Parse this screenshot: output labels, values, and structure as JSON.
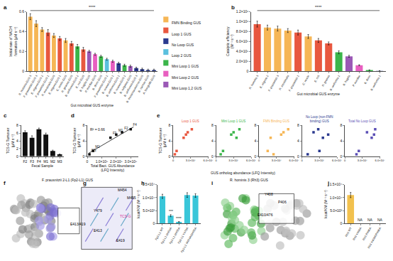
{
  "chart_data": [
    {
      "panel": "a",
      "type": "bar",
      "y_label": [
        "Initial rate of NADH",
        "formation (μM s⁻¹)"
      ],
      "x_label": "Gut microbial GUS enzyme",
      "categories": [
        "R. hominis GUS 3",
        "F. prausnitzii GUS 3",
        "E. eligens GUS 2",
        "F. prausnitzii GUS 1",
        "R. intestinalis GUS",
        "E. eligens GUS 1",
        "C. nexile GUS",
        "R. gnavus GUS",
        "B. uniformis GUS 2",
        "E. coli GUS",
        "B. fragilis GUS",
        "P. merdae GUS",
        "B. dorei GUS",
        "F. prausnitzii GUS 2",
        "B. ovatus GUS 1",
        "B. uniformis GUS 1",
        "B. ovatus GUS 2",
        "B. vulgatus GUS",
        "B. uniformis GUS 3",
        "B. thetaiotaomicron GUS",
        "B. caccae GUS",
        "A. finegoldii GUS"
      ],
      "values": [
        0.55,
        0.48,
        0.42,
        0.39,
        0.36,
        0.33,
        0.31,
        0.28,
        0.25,
        0.22,
        0.2,
        0.17,
        0.15,
        0.12,
        0.1,
        0.08,
        0.06,
        0.05,
        0.03,
        0.02,
        0.01,
        0.01
      ],
      "errors": [
        0.03,
        0.03,
        0.02,
        0.03,
        0.02,
        0.02,
        0.02,
        0.02,
        0.02,
        0.02,
        0.01,
        0.01,
        0.01,
        0.01,
        0.01,
        0.01,
        0.01,
        0.01,
        0.01,
        0.01,
        0.01,
        0.01
      ],
      "colors": [
        "#f6b655",
        "#f6b655",
        "#f6b655",
        "#e8573f",
        "#f6b655",
        "#e8573f",
        "#f6b655",
        "#e8573f",
        "#3bb54a",
        "#e8573f",
        "#9b59b6",
        "#e85fc0",
        "#3bb54a",
        "#5bc0de",
        "#e85fc0",
        "#2b3a8f",
        "#3bb54a",
        "#9b59b6",
        "#2b3a8f",
        "#2b3a8f",
        "#2b3a8f",
        "#2b3a8f"
      ],
      "ylim": [
        0,
        0.6
      ],
      "yticks": [
        0,
        0.2,
        0.4,
        0.6
      ],
      "significance": "****",
      "legend_items": [
        {
          "name": "FMN Binding GUS",
          "color": "#f6b655"
        },
        {
          "name": "Loop 1 GUS",
          "color": "#e8573f"
        },
        {
          "name": "No Loop GUS",
          "color": "#2b3a8f"
        },
        {
          "name": "Loop 2 GUS",
          "color": "#5bc0de"
        },
        {
          "name": "Mini Loop 1 GUS",
          "color": "#3bb54a"
        },
        {
          "name": "Mini Loop 2 GUS",
          "color": "#e85fc0"
        },
        {
          "name": "Mini Loop 1,2 GUS",
          "color": "#9b59b6"
        }
      ]
    },
    {
      "panel": "b",
      "type": "bar",
      "y_label": [
        "Catalytic efficiency",
        "(M⁻¹ s⁻¹)"
      ],
      "x_label": "Gut microbial GUS enzyme",
      "categories": [
        "R. hominis 3",
        "E. eligens 2",
        "F. prausnitzii 3",
        "R. intestinalis",
        "F. prausnitzii 1",
        "C. nexile",
        "E. coli",
        "R. gnavus",
        "B. uniformis 2",
        "B. fragilis",
        "P. merdae",
        "B. dorei",
        "B. uniformis 1"
      ],
      "values": [
        950000,
        880000,
        860000,
        820000,
        780000,
        700000,
        620000,
        560000,
        380000,
        300000,
        120000,
        20000,
        5000
      ],
      "errors": [
        60000,
        50000,
        50000,
        40000,
        50000,
        40000,
        40000,
        30000,
        30000,
        20000,
        10000,
        5000,
        2000
      ],
      "colors": [
        "#e8573f",
        "#f6b655",
        "#f6b655",
        "#f6b655",
        "#e8573f",
        "#f6b655",
        "#e8573f",
        "#e8573f",
        "#3bb54a",
        "#9b59b6",
        "#e85fc0",
        "#3bb54a",
        "#2b3a8f"
      ],
      "ylim": [
        0,
        1200000
      ],
      "yticks": [
        0,
        {
          "value": 200000,
          "label": "2.0×10⁵"
        },
        {
          "value": 400000,
          "label": "4.0×10⁵"
        },
        {
          "value": 600000,
          "label": "6.0×10⁵"
        },
        {
          "value": 800000,
          "label": "8.0×10⁵"
        },
        {
          "value": 1000000,
          "label": "1.0×10⁶"
        },
        {
          "value": 1200000,
          "label": "1.2×10⁶"
        }
      ],
      "significance": "****"
    },
    {
      "panel": "c",
      "type": "bar",
      "y_label": [
        "TCS-G Turnover",
        "(μM s⁻¹)"
      ],
      "x_label": "Fecal Sample",
      "categories": [
        "F2",
        "F3",
        "F4",
        "M1",
        "M2",
        "M3"
      ],
      "values": [
        6.2,
        4.8,
        7.0,
        5.6,
        1.4,
        0.5
      ],
      "errors": [
        0.4,
        0.5,
        0.3,
        0.4,
        0.2,
        0.1
      ],
      "color": "#111111",
      "ylim": [
        0,
        8
      ],
      "yticks": [
        0,
        2,
        4,
        6,
        8
      ]
    },
    {
      "panel": "d",
      "type": "scatter",
      "y_label": [
        "TCS-G Turnover",
        "(μM s⁻¹)"
      ],
      "x_label": [
        "Total Bact. GUS Abundance",
        "(LFQ Intensity)"
      ],
      "labels": [
        "F2",
        "F3",
        "F4",
        "M1",
        "M2",
        "M3"
      ],
      "x": [
        240000000,
        160000000,
        300000000,
        200000000,
        40000000,
        15000000
      ],
      "values": [
        6.2,
        4.8,
        7.0,
        5.6,
        1.4,
        0.5
      ],
      "fit": {
        "x": [
          10000000,
          320000000
        ],
        "y": [
          0.8,
          7.6
        ]
      },
      "annotation": "R² = 0.66",
      "color": "#111111",
      "xlim": [
        0,
        350000000
      ],
      "xticks": [
        0,
        {
          "value": 100000000,
          "label": "1.0×10⁸"
        },
        {
          "value": 200000000,
          "label": "2.0×10⁸"
        },
        {
          "value": 300000000,
          "label": "3.0×10⁸"
        }
      ],
      "ylim": [
        0,
        8
      ],
      "yticks": [
        0,
        4,
        8
      ]
    },
    {
      "panel": "e",
      "type": "scatter",
      "y_label": [
        "TCS-G Turnover",
        "(μM s⁻¹)"
      ],
      "x_label": "GUS ortholog abundance (LFQ Intensity)",
      "values": [
        6.2,
        4.8,
        7.0,
        5.6,
        1.4,
        0.5
      ],
      "xlim": [
        0,
        60000000
      ],
      "xticks": [
        0,
        {
          "value": 30000000,
          "label": "3.0×10⁷"
        },
        {
          "value": 60000000,
          "label": "6.0×10⁷"
        }
      ],
      "ylim": [
        0,
        8
      ],
      "yticks": [
        0,
        4,
        8
      ],
      "panels": [
        {
          "title": "Loop 1 GUS",
          "color": "#e8573f",
          "x": [
            25000000,
            18000000,
            32000000,
            22000000,
            6000000,
            3000000
          ]
        },
        {
          "title": "Mini Loop 1 GUS",
          "color": "#3bb54a",
          "x": [
            30000000,
            35000000,
            40000000,
            26000000,
            12000000,
            8000000
          ]
        },
        {
          "title": "FMN Binding GUS",
          "color": "#f6b655",
          "x": [
            42000000,
            20000000,
            50000000,
            38000000,
            15000000,
            25000000
          ]
        },
        {
          "title": [
            "No Loop (non-FMN",
            "binding) GUS"
          ],
          "color": "#2b3a8f",
          "x": [
            20000000,
            36000000,
            28000000,
            45000000,
            30000000,
            10000000
          ]
        },
        {
          "title": "Total No Loop GUS",
          "color": "#5b4fb5",
          "x": [
            38000000,
            46000000,
            52000000,
            50000000,
            24000000,
            20000000
          ]
        }
      ]
    },
    {
      "panel": "f",
      "type": "structure",
      "title": "F. prausnitzii 2-L1 (Fp2-L1) GUS",
      "labels": [
        "E413/419"
      ]
    },
    {
      "panel": "g",
      "type": "structure",
      "labels": [
        "M454",
        "M455",
        "Y479",
        "E413",
        "E419",
        "TCS-G"
      ]
    },
    {
      "panel": "h",
      "type": "bar",
      "y_label": "kcat/KM (M⁻¹ s⁻¹)",
      "categories": [
        "Fp2-L1 WT",
        "Fp2-L1 M454A",
        "Fp2-L1 M455A",
        "Fp2-L1 Y479A",
        "Fp2-L1 M454A/M455A"
      ],
      "values": [
        10500,
        3000,
        600,
        11000,
        10800
      ],
      "errors": [
        800,
        400,
        100,
        900,
        700
      ],
      "significance": [
        null,
        "***",
        "****",
        null,
        null
      ],
      "color": "#39c6d9",
      "ylim": [
        0,
        15000
      ],
      "yticks": [
        0,
        {
          "value": 5000,
          "label": "5.0×10³"
        },
        {
          "value": 10000,
          "label": "1.0×10⁴"
        },
        {
          "value": 15000,
          "label": "1.5×10⁴"
        }
      ]
    },
    {
      "panel": "i",
      "type": "structure",
      "title": "R. hominis 3 (Rh3) GUS",
      "labels": [
        "Y408",
        "P406",
        "E410/476"
      ]
    },
    {
      "panel": "j",
      "type": "bar",
      "y_label": "kcat/KM (M⁻¹ s⁻¹)",
      "categories": [
        "Rh3 WT",
        "Rh3 Y408A",
        "Rh3 P406A",
        "Rh3 Y408A/P406A"
      ],
      "values": [
        11000,
        null,
        null,
        null
      ],
      "errors": [
        1000,
        null,
        null,
        null
      ],
      "notes": [
        null,
        "NA",
        "NA",
        "NA"
      ],
      "color": "#f2c14e",
      "ylim": [
        0,
        15000
      ],
      "yticks": [
        0,
        {
          "value": 5000,
          "label": "5.0×10³"
        },
        {
          "value": 10000,
          "label": "1.0×10⁴"
        },
        {
          "value": 15000,
          "label": "1.5×10⁴"
        }
      ]
    }
  ]
}
